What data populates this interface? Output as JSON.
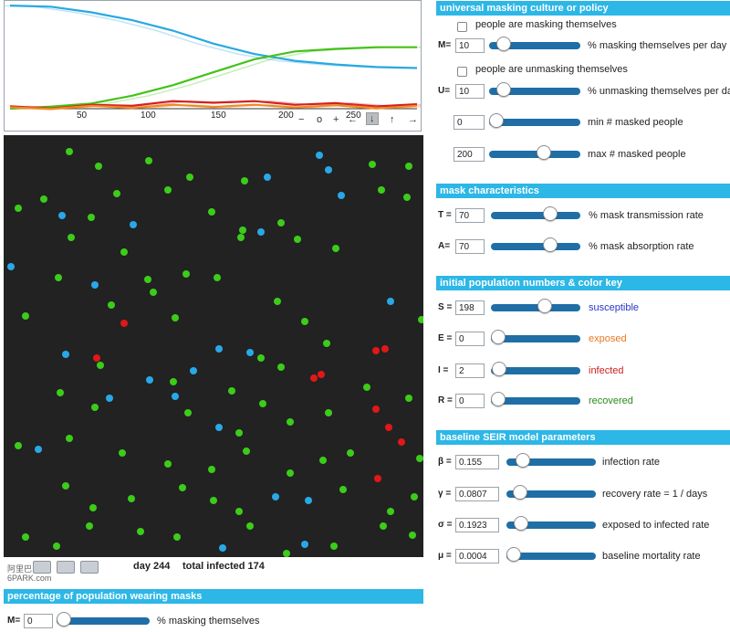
{
  "chart": {
    "x_ticks": [
      "50",
      "100",
      "150",
      "200",
      "250"
    ],
    "controls": [
      "−",
      "o",
      "+",
      "←",
      "↓",
      "↑",
      "→"
    ],
    "colors": {
      "susceptible": "#2aa8e0",
      "recovered": "#44c21a",
      "infected": "#d42020",
      "exposed": "#f08a22"
    }
  },
  "chart_data": {
    "type": "line",
    "x": [
      0,
      25,
      50,
      75,
      100,
      125,
      150,
      175,
      200,
      225,
      250
    ],
    "series": [
      {
        "values": [
          198,
          196,
          185,
          170,
          150,
          125,
          105,
          92,
          85,
          80,
          78
        ]
      },
      {
        "values": [
          0,
          4,
          10,
          25,
          45,
          70,
          95,
          110,
          115,
          118,
          118
        ]
      },
      {
        "values": [
          2,
          3,
          5,
          8,
          12,
          14,
          12,
          10,
          8,
          7,
          6
        ]
      },
      {
        "values": [
          0,
          2,
          3,
          4,
          5,
          6,
          5,
          5,
          4,
          3,
          3
        ]
      }
    ],
    "xlim": [
      0,
      250
    ],
    "ylim": [
      0,
      200
    ]
  },
  "status": {
    "day": "day 244",
    "total_infected": "total infected 174"
  },
  "watermark": {
    "line1": "阿里巴",
    "line2": "6PARK.com"
  },
  "masking_policy": {
    "title": "universal masking culture or policy",
    "checkbox_mask": "people are masking themselves",
    "m_label": "M=",
    "m_value": "10",
    "m_desc": "% masking themselves per day",
    "m_frac": 0.1,
    "checkbox_unmask": "people are unmasking themselves",
    "u_label": "U=",
    "u_value": "10",
    "u_desc": "% unmasking themselves per day",
    "u_frac": 0.1,
    "min_value": "0",
    "min_desc": "min # masked people",
    "min_frac": 0.0,
    "max_value": "200",
    "max_desc": "max # masked people",
    "max_frac": 0.62
  },
  "mask_chars": {
    "title": "mask characteristics",
    "t_label": "T =",
    "t_value": "70",
    "t_desc": "% mask transmission rate",
    "t_frac": 0.7,
    "a_label": "A=",
    "a_value": "70",
    "a_desc": "% mask absorption rate",
    "a_frac": 0.7
  },
  "population": {
    "title": "initial population numbers & color key",
    "s_label": "S =",
    "s_value": "198",
    "s_desc": "susceptible",
    "s_frac": 0.62,
    "e_label": "E =",
    "e_value": "0",
    "e_desc": "exposed",
    "e_frac": 0.0,
    "i_label": "I =",
    "i_value": "2",
    "i_desc": "infected",
    "i_frac": 0.01,
    "r_label": "R =",
    "r_value": "0",
    "r_desc": "recovered",
    "r_frac": 0.0,
    "desc_colors": {
      "s": "#2a35c8",
      "e": "#e8781e",
      "i": "#cc1e1e",
      "r": "#2a8a1a"
    }
  },
  "seir": {
    "title": "baseline SEIR model parameters",
    "beta_label": "β =",
    "beta_value": "0.155",
    "beta_desc": "infection rate",
    "beta_frac": 0.12,
    "gamma_label": "γ =",
    "gamma_value": "0.0807",
    "gamma_desc": "recovery rate = 1 / days",
    "gamma_frac": 0.08,
    "sigma_label": "σ =",
    "sigma_value": "0.1923",
    "sigma_desc": "exposed to infected rate",
    "sigma_frac": 0.1,
    "mu_label": "μ =",
    "mu_value": "0.0004",
    "mu_desc": "baseline mortality rate",
    "mu_frac": 0.0
  },
  "wearing": {
    "title": "percentage of population wearing masks",
    "m_label": "M=",
    "m_value": "0",
    "m_desc": "% masking themselves",
    "m_frac": 0.0
  }
}
